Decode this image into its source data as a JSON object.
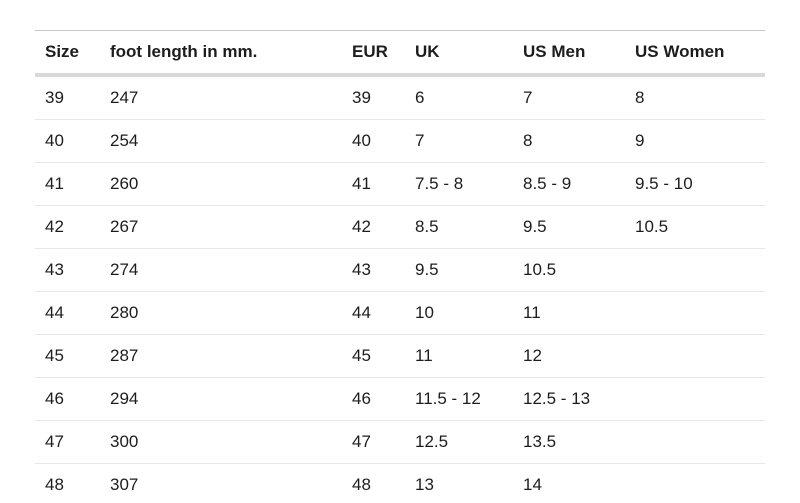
{
  "size_chart": {
    "columns": [
      {
        "label": "Size"
      },
      {
        "label": "foot length in mm."
      },
      {
        "label": "EUR"
      },
      {
        "label": "UK"
      },
      {
        "label": "US Men"
      },
      {
        "label": "US Women"
      }
    ],
    "rows": [
      [
        "39",
        "247",
        "39",
        "6",
        "7",
        "8"
      ],
      [
        "40",
        "254",
        "40",
        "7",
        "8",
        "9"
      ],
      [
        "41",
        "260",
        "41",
        "7.5 - 8",
        "8.5 - 9",
        "9.5 - 10"
      ],
      [
        "42",
        "267",
        "42",
        "8.5",
        "9.5",
        "10.5"
      ],
      [
        "43",
        "274",
        "43",
        "9.5",
        "10.5",
        ""
      ],
      [
        "44",
        "280",
        "44",
        "10",
        "11",
        ""
      ],
      [
        "45",
        "287",
        "45",
        "11",
        "12",
        ""
      ],
      [
        "46",
        "294",
        "46",
        "11.5 - 12",
        "12.5 - 13",
        ""
      ],
      [
        "47",
        "300",
        "47",
        "12.5",
        "13.5",
        ""
      ],
      [
        "48",
        "307",
        "48",
        "13",
        "14",
        ""
      ]
    ],
    "colors": {
      "text": "#1d1d1d",
      "top_border": "#c9c9c9",
      "header_divider": "#d8d8d8",
      "row_divider": "#e7e7e7",
      "background": "#ffffff"
    }
  }
}
